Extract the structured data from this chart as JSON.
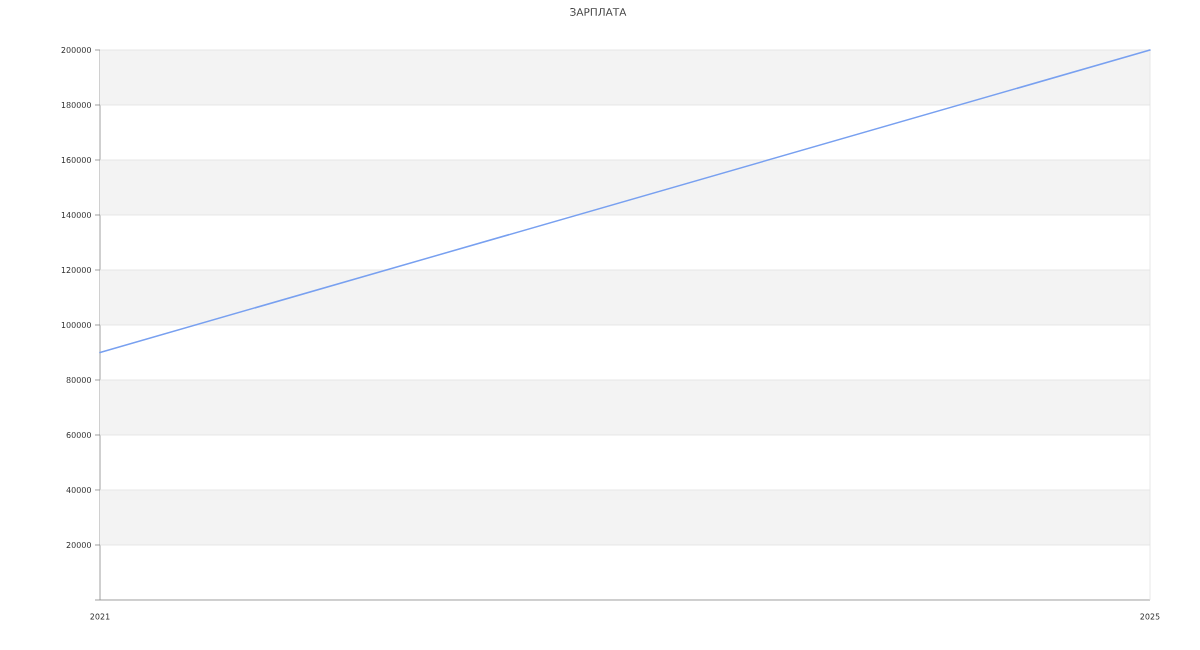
{
  "chart_data": {
    "type": "line",
    "title": "ЗАРПЛАТА",
    "x": [
      2021,
      2025
    ],
    "values": [
      90000,
      200000
    ],
    "color": "#78a0f0",
    "xlim": [
      2021,
      2025
    ],
    "xticks": [
      2021,
      2025
    ],
    "ylim": [
      0,
      200000
    ],
    "yticks": [
      {
        "value": 0,
        "label": null
      },
      20000,
      40000,
      60000,
      80000,
      100000,
      120000,
      140000,
      160000,
      180000,
      200000
    ],
    "grid": "y",
    "line_style": "solid"
  }
}
